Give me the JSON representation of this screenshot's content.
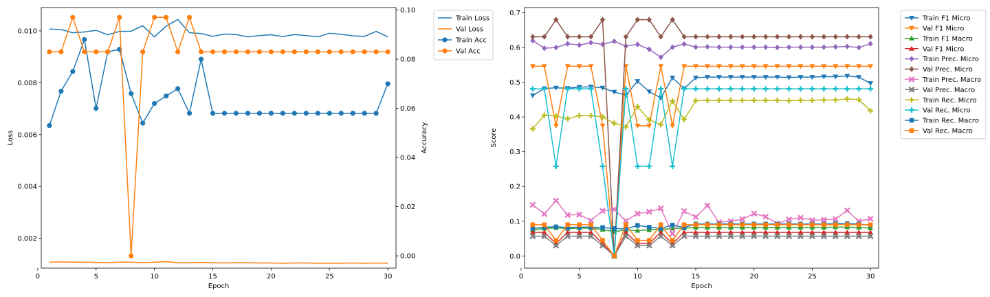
{
  "chart_data": [
    {
      "type": "line",
      "x": [
        1,
        2,
        3,
        4,
        5,
        6,
        7,
        8,
        9,
        10,
        11,
        12,
        13,
        14,
        15,
        16,
        17,
        18,
        19,
        20,
        21,
        22,
        23,
        24,
        25,
        26,
        27,
        28,
        29,
        30
      ],
      "xlabel": "Epoch",
      "ylabel": "Loss",
      "y2label": "Accuracy",
      "xlim": [
        0.3,
        30.7
      ],
      "ylim": [
        0.00085,
        0.0109
      ],
      "y2lim": [
        -0.005,
        0.101
      ],
      "xticks": [
        "0",
        "5",
        "10",
        "15",
        "20",
        "25",
        "30"
      ],
      "yticks": [
        "0.002",
        "0.004",
        "0.006",
        "0.008",
        "0.010"
      ],
      "y2ticks": [
        "0.00",
        "0.02",
        "0.04",
        "0.06",
        "0.08",
        "0.10"
      ],
      "legend_position": "outside-right",
      "series": [
        {
          "name": "Train Loss",
          "axis": "left",
          "color": "#1f77b4",
          "marker": "none",
          "values": [
            0.01007,
            0.01005,
            0.00993,
            0.00996,
            0.01002,
            0.00985,
            0.00998,
            0.00999,
            0.0102,
            0.00977,
            0.01018,
            0.01044,
            0.00993,
            0.0099,
            0.00979,
            0.00988,
            0.00986,
            0.00977,
            0.00982,
            0.00985,
            0.00978,
            0.00986,
            0.00982,
            0.00977,
            0.00991,
            0.00987,
            0.00981,
            0.00979,
            0.00998,
            0.00977
          ]
        },
        {
          "name": "Val Loss",
          "axis": "left",
          "color": "#ff7f0e",
          "marker": "none",
          "values": [
            0.00108,
            0.00109,
            0.00108,
            0.00108,
            0.00107,
            0.00106,
            0.00108,
            0.00108,
            0.00106,
            0.00108,
            0.0011,
            0.00106,
            0.00106,
            0.00107,
            0.00106,
            0.00105,
            0.00106,
            0.00106,
            0.00105,
            0.00105,
            0.00104,
            0.00105,
            0.00105,
            0.00104,
            0.00104,
            0.00104,
            0.00105,
            0.00104,
            0.00105,
            0.00104
          ]
        },
        {
          "name": "Train Acc",
          "axis": "right",
          "color": "#1f77b4",
          "marker": "circle",
          "values": [
            0.053,
            0.067,
            0.075,
            0.088,
            0.06,
            0.083,
            0.084,
            0.066,
            0.054,
            0.062,
            0.065,
            0.068,
            0.058,
            0.08,
            0.058,
            0.058,
            0.058,
            0.058,
            0.058,
            0.058,
            0.058,
            0.058,
            0.058,
            0.058,
            0.058,
            0.058,
            0.058,
            0.058,
            0.058,
            0.07
          ]
        },
        {
          "name": "Val Acc",
          "axis": "right",
          "color": "#ff7f0e",
          "marker": "circle",
          "values": [
            0.083,
            0.083,
            0.097,
            0.083,
            0.083,
            0.083,
            0.097,
            0.0,
            0.083,
            0.097,
            0.097,
            0.083,
            0.097,
            0.083,
            0.083,
            0.083,
            0.083,
            0.083,
            0.083,
            0.083,
            0.083,
            0.083,
            0.083,
            0.083,
            0.083,
            0.083,
            0.083,
            0.083,
            0.083,
            0.083
          ]
        }
      ]
    },
    {
      "type": "line",
      "x": [
        1,
        2,
        3,
        4,
        5,
        6,
        7,
        8,
        9,
        10,
        11,
        12,
        13,
        14,
        15,
        16,
        17,
        18,
        19,
        20,
        21,
        22,
        23,
        24,
        25,
        26,
        27,
        28,
        29,
        30
      ],
      "xlabel": "Epoch",
      "ylabel": "Score",
      "xlim": [
        0.3,
        30.7
      ],
      "ylim": [
        -0.035,
        0.715
      ],
      "xticks": [
        "0",
        "5",
        "10",
        "15",
        "20",
        "25",
        "30"
      ],
      "yticks": [
        "0.0",
        "0.1",
        "0.2",
        "0.3",
        "0.4",
        "0.5",
        "0.6",
        "0.7"
      ],
      "legend_position": "outside-right",
      "series": [
        {
          "name": "Train F1 Micro",
          "color": "#1f77b4",
          "marker": "tri_down",
          "values": [
            0.462,
            0.482,
            0.484,
            0.483,
            0.486,
            0.487,
            0.484,
            0.472,
            0.463,
            0.503,
            0.473,
            0.455,
            0.513,
            0.482,
            0.513,
            0.515,
            0.515,
            0.515,
            0.515,
            0.515,
            0.515,
            0.515,
            0.514,
            0.515,
            0.515,
            0.516,
            0.516,
            0.518,
            0.515,
            0.497
          ]
        },
        {
          "name": "Val F1 Micro",
          "color": "#ff7f0e",
          "marker": "tri_down",
          "values": [
            0.546,
            0.546,
            0.375,
            0.546,
            0.546,
            0.546,
            0.375,
            0.0,
            0.546,
            0.375,
            0.375,
            0.546,
            0.375,
            0.546,
            0.546,
            0.546,
            0.546,
            0.546,
            0.546,
            0.546,
            0.546,
            0.546,
            0.546,
            0.546,
            0.546,
            0.546,
            0.546,
            0.546,
            0.546,
            0.546
          ]
        },
        {
          "name": "Train F1 Macro",
          "color": "#2ca02c",
          "marker": "tri_up",
          "values": [
            0.075,
            0.079,
            0.081,
            0.079,
            0.08,
            0.08,
            0.076,
            0.07,
            0.075,
            0.073,
            0.075,
            0.076,
            0.079,
            0.08,
            0.082,
            0.082,
            0.082,
            0.082,
            0.082,
            0.082,
            0.082,
            0.082,
            0.082,
            0.082,
            0.082,
            0.082,
            0.083,
            0.083,
            0.082,
            0.08
          ]
        },
        {
          "name": "Val F1 Micro",
          "color": "#d62728",
          "marker": "tri_up",
          "values": [
            0.068,
            0.068,
            0.036,
            0.068,
            0.068,
            0.068,
            0.036,
            0.0,
            0.068,
            0.036,
            0.036,
            0.068,
            0.036,
            0.068,
            0.068,
            0.068,
            0.068,
            0.068,
            0.068,
            0.068,
            0.068,
            0.068,
            0.068,
            0.068,
            0.068,
            0.068,
            0.068,
            0.068,
            0.068,
            0.068
          ]
        },
        {
          "name": "Train Prec. Micro",
          "color": "#9467bd",
          "marker": "diamond",
          "values": [
            0.62,
            0.598,
            0.6,
            0.611,
            0.607,
            0.614,
            0.609,
            0.618,
            0.604,
            0.609,
            0.595,
            0.572,
            0.601,
            0.61,
            0.601,
            0.602,
            0.601,
            0.601,
            0.601,
            0.601,
            0.601,
            0.6,
            0.601,
            0.601,
            0.601,
            0.601,
            0.602,
            0.603,
            0.6,
            0.611
          ]
        },
        {
          "name": "Val Prec. Micro",
          "color": "#8c564b",
          "marker": "diamond",
          "values": [
            0.631,
            0.631,
            0.68,
            0.631,
            0.631,
            0.631,
            0.68,
            0.0,
            0.631,
            0.68,
            0.68,
            0.631,
            0.68,
            0.631,
            0.631,
            0.631,
            0.631,
            0.631,
            0.631,
            0.631,
            0.631,
            0.631,
            0.631,
            0.631,
            0.631,
            0.631,
            0.631,
            0.631,
            0.631,
            0.631
          ]
        },
        {
          "name": "Train Prec. Macro",
          "color": "#e377c2",
          "marker": "x",
          "values": [
            0.147,
            0.121,
            0.159,
            0.118,
            0.119,
            0.102,
            0.13,
            0.134,
            0.101,
            0.122,
            0.127,
            0.137,
            0.064,
            0.129,
            0.112,
            0.145,
            0.097,
            0.1,
            0.106,
            0.122,
            0.113,
            0.093,
            0.105,
            0.11,
            0.103,
            0.104,
            0.106,
            0.131,
            0.1,
            0.107
          ]
        },
        {
          "name": "Val Prec. Macro",
          "color": "#7f7f7f",
          "marker": "x",
          "values": [
            0.057,
            0.057,
            0.03,
            0.057,
            0.057,
            0.057,
            0.03,
            0.0,
            0.057,
            0.03,
            0.03,
            0.057,
            0.03,
            0.057,
            0.057,
            0.057,
            0.057,
            0.057,
            0.057,
            0.057,
            0.057,
            0.057,
            0.057,
            0.057,
            0.057,
            0.057,
            0.057,
            0.057,
            0.057,
            0.057
          ]
        },
        {
          "name": "Train Rec. Micro",
          "color": "#bcbd22",
          "marker": "plus",
          "values": [
            0.366,
            0.405,
            0.403,
            0.395,
            0.404,
            0.404,
            0.4,
            0.382,
            0.372,
            0.43,
            0.392,
            0.378,
            0.446,
            0.393,
            0.447,
            0.448,
            0.448,
            0.448,
            0.448,
            0.448,
            0.448,
            0.448,
            0.447,
            0.448,
            0.448,
            0.449,
            0.449,
            0.452,
            0.45,
            0.418
          ]
        },
        {
          "name": "Val Rec. Micro",
          "color": "#17becf",
          "marker": "plus",
          "values": [
            0.481,
            0.481,
            0.258,
            0.481,
            0.481,
            0.481,
            0.258,
            0.0,
            0.481,
            0.258,
            0.258,
            0.481,
            0.258,
            0.481,
            0.481,
            0.481,
            0.481,
            0.481,
            0.481,
            0.481,
            0.481,
            0.481,
            0.481,
            0.481,
            0.481,
            0.481,
            0.481,
            0.481,
            0.481,
            0.481
          ]
        },
        {
          "name": "Train Rec. Macro",
          "color": "#1f77b4",
          "marker": "square",
          "values": [
            0.079,
            0.083,
            0.084,
            0.082,
            0.083,
            0.083,
            0.082,
            0.079,
            0.078,
            0.088,
            0.083,
            0.079,
            0.089,
            0.082,
            0.092,
            0.092,
            0.092,
            0.092,
            0.092,
            0.092,
            0.092,
            0.092,
            0.092,
            0.092,
            0.092,
            0.092,
            0.093,
            0.093,
            0.092,
            0.088
          ]
        },
        {
          "name": "Val Rec. Macro",
          "color": "#ff7f0e",
          "marker": "square",
          "values": [
            0.09,
            0.09,
            0.045,
            0.09,
            0.09,
            0.09,
            0.045,
            0.0,
            0.09,
            0.045,
            0.045,
            0.09,
            0.045,
            0.09,
            0.09,
            0.09,
            0.09,
            0.09,
            0.09,
            0.09,
            0.09,
            0.09,
            0.09,
            0.09,
            0.09,
            0.09,
            0.09,
            0.09,
            0.09,
            0.09
          ]
        }
      ]
    }
  ]
}
